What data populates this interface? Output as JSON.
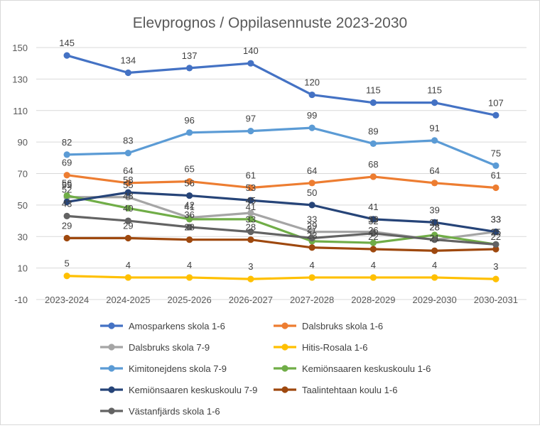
{
  "chart_data": {
    "type": "line",
    "title": "Elevprognos / Oppilasennuste 2023-2030",
    "xlabel": "",
    "ylabel": "",
    "categories": [
      "2023-2024",
      "2024-2025",
      "2025-2026",
      "2026-2027",
      "2027-2028",
      "2028-2029",
      "2029-2030",
      "2030-2031"
    ],
    "ylim": [
      -10,
      150
    ],
    "yticks": [
      -10,
      10,
      30,
      50,
      70,
      90,
      110,
      130,
      150
    ],
    "grid": true,
    "legend_position": "bottom",
    "series": [
      {
        "name": "Amosparkens skola 1-6",
        "color": "#4472C4",
        "values": [
          145,
          134,
          137,
          140,
          120,
          115,
          115,
          107
        ]
      },
      {
        "name": "Dalsbruks skola 1-6",
        "color": "#ED7D31",
        "values": [
          69,
          64,
          65,
          61,
          64,
          68,
          64,
          61
        ]
      },
      {
        "name": "Dalsbruks skola 7-9",
        "color": "#A5A5A5",
        "values": [
          55,
          55,
          42,
          45,
          33,
          33,
          28,
          33
        ]
      },
      {
        "name": "Hitis-Rosala 1-6",
        "color": "#FFC000",
        "values": [
          5,
          4,
          4,
          3,
          4,
          4,
          4,
          3
        ]
      },
      {
        "name": "Kimitonejdens skola 7-9",
        "color": "#5B9BD5",
        "values": [
          82,
          83,
          96,
          97,
          99,
          89,
          91,
          75
        ]
      },
      {
        "name": "Kemiönsaaren keskuskoulu 1-6",
        "color": "#70AD47",
        "values": [
          56,
          48,
          41,
          41,
          27,
          26,
          31,
          25
        ]
      },
      {
        "name": "Kemiönsaaren keskuskoulu 7-9",
        "color": "#264478",
        "values": [
          52,
          58,
          56,
          53,
          50,
          41,
          39,
          33
        ]
      },
      {
        "name": "Taalintehtaan koulu 1-6",
        "color": "#9E480E",
        "values": [
          29,
          29,
          28,
          28,
          23,
          22,
          21,
          22
        ]
      },
      {
        "name": "Västanfjärds skola 1-6",
        "color": "#636363",
        "values": [
          43,
          40,
          36,
          33,
          29,
          32,
          28,
          25
        ]
      }
    ],
    "data_labels": [
      {
        "series": 0,
        "labels": [
          "145",
          "134",
          "137",
          "140",
          "120",
          "115",
          "115",
          "107"
        ]
      },
      {
        "series": 4,
        "labels": [
          "82",
          "83",
          "96",
          "97",
          "99",
          "89",
          "91",
          "75"
        ]
      },
      {
        "series": 1,
        "labels": [
          "69",
          "64",
          "65",
          "61",
          "64",
          "68",
          "64",
          "61"
        ]
      },
      {
        "series": 2,
        "labels": [
          "55",
          "55",
          "42",
          "45",
          "33",
          "33",
          "28",
          "33"
        ]
      },
      {
        "series": 6,
        "labels": [
          "52",
          "58",
          "56",
          "53",
          "50",
          "41",
          "39",
          "33"
        ]
      },
      {
        "series": 5,
        "labels": [
          "56",
          "48",
          "41",
          "41",
          "27",
          "26",
          "31",
          "25"
        ]
      },
      {
        "series": 8,
        "labels": [
          "43",
          "40",
          "36",
          "33",
          "29",
          "32",
          "28",
          "25"
        ]
      },
      {
        "series": 7,
        "labels": [
          "29",
          "29",
          "28",
          "28",
          "23",
          "22",
          "21",
          "22"
        ]
      },
      {
        "series": 3,
        "labels": [
          "5",
          "4",
          "4",
          "3",
          "4",
          "4",
          "4",
          "3"
        ]
      }
    ]
  }
}
